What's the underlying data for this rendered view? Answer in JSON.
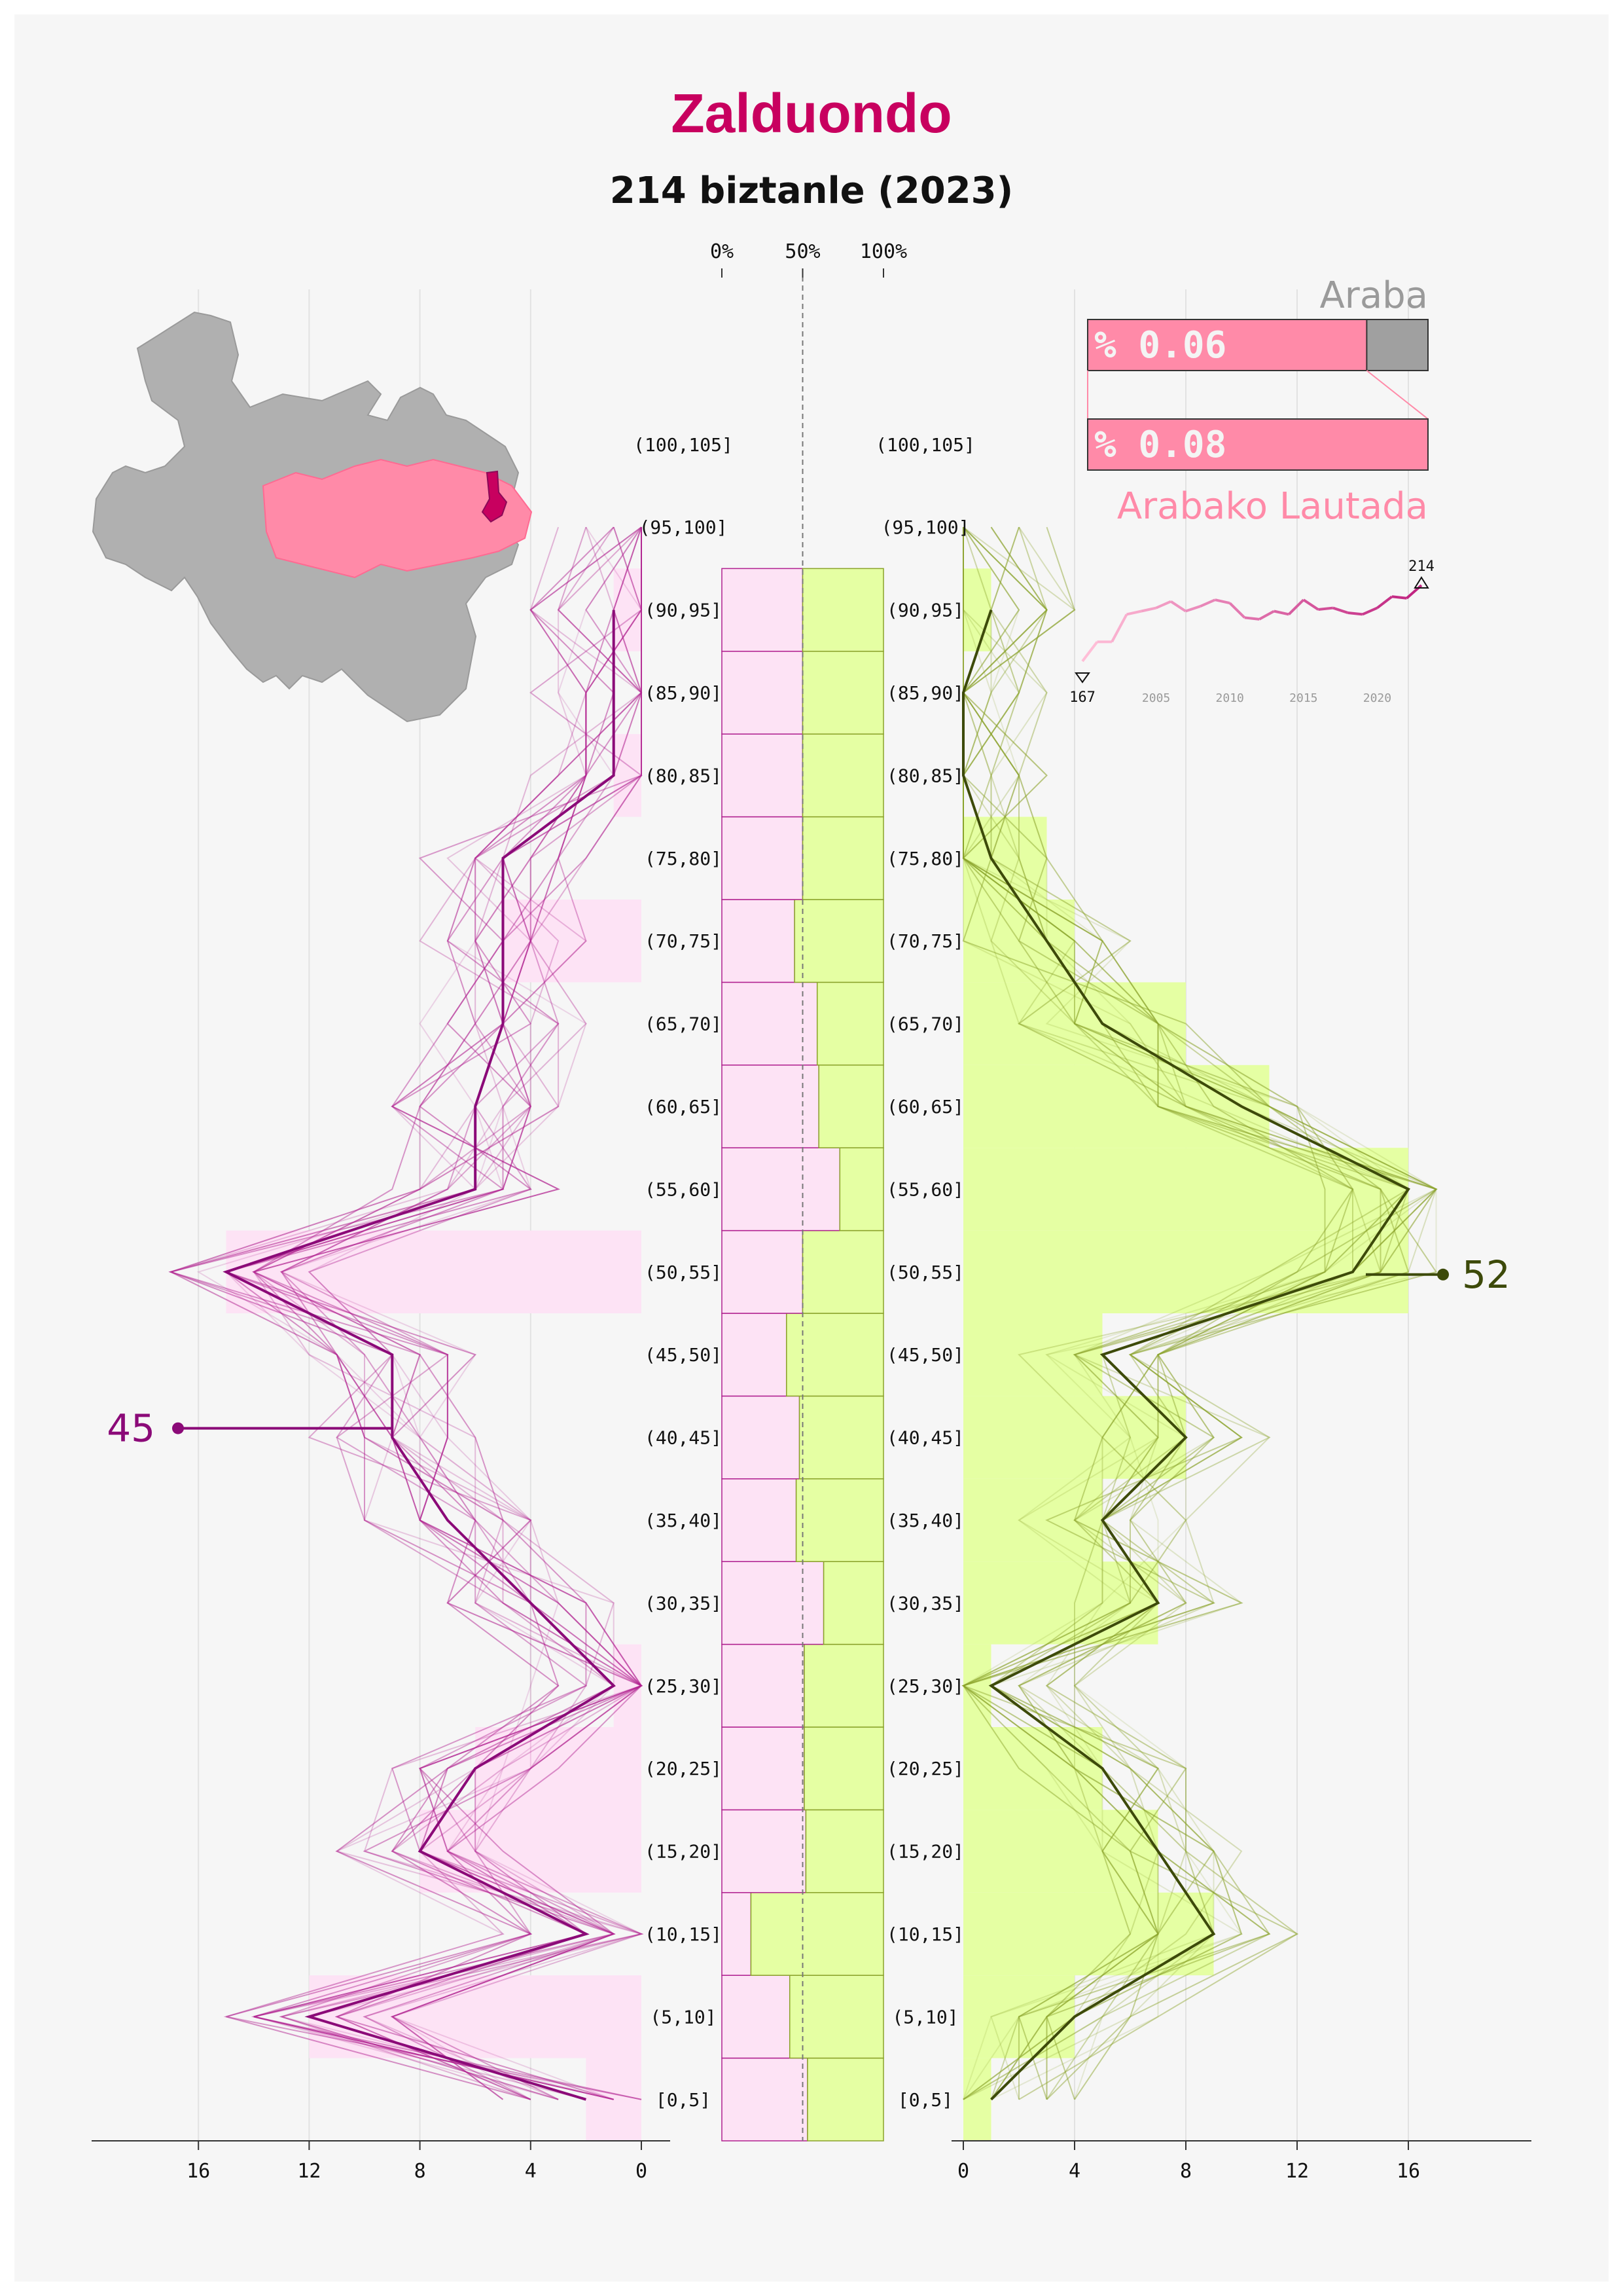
{
  "header": {
    "title": "Zalduondo",
    "subtitle": "214 biztanle (2023)"
  },
  "colors": {
    "title": "#c8005f",
    "female_dark": "#8b0a78",
    "female_fill": "#fde3f5",
    "male_dark": "#3d4a0a",
    "male_fill": "#e5ffa3",
    "map_grey": "#b0b0b0",
    "map_highlight": "#ff8aa8",
    "map_town": "#c8005f",
    "share_bar": "#ff8aa8",
    "share_rest": "#a0a0a0"
  },
  "share_panel": {
    "province_label": "Araba",
    "province_value": "% 0.06",
    "province_share": 0.06,
    "region_label": "Arabako Lautada",
    "region_value": "% 0.08",
    "region_share": 0.08
  },
  "sparkline": {
    "years": [
      2000,
      2001,
      2002,
      2003,
      2004,
      2005,
      2006,
      2007,
      2008,
      2009,
      2010,
      2011,
      2012,
      2013,
      2014,
      2015,
      2016,
      2017,
      2018,
      2019,
      2020,
      2021,
      2022,
      2023
    ],
    "values": [
      167,
      179,
      179,
      196,
      198,
      200,
      204,
      198,
      201,
      205,
      203,
      194,
      193,
      198,
      196,
      205,
      199,
      200,
      197,
      196,
      200,
      207,
      206,
      214
    ],
    "tick_labels": [
      "2005",
      "2010",
      "2015",
      "2020"
    ],
    "min_label": "167",
    "max_label": "214"
  },
  "chart_data": {
    "type": "bar",
    "age_groups": [
      "[0,5]",
      "(5,10]",
      "(10,15]",
      "(15,20]",
      "(20,25]",
      "(25,30]",
      "(30,35]",
      "(35,40]",
      "(40,45]",
      "(45,50]",
      "(50,55]",
      "(55,60]",
      "(60,65]",
      "(65,70]",
      "(70,75]",
      "(75,80]",
      "(80,85]",
      "(85,90]",
      "(90,95]",
      "(95,100]",
      "(100,105]"
    ],
    "female": [
      2,
      12,
      0,
      8,
      6,
      1,
      0,
      0,
      0,
      0,
      15,
      0,
      0,
      0,
      5,
      0,
      1,
      0,
      1,
      0,
      0
    ],
    "male": [
      1,
      4,
      9,
      7,
      5,
      1,
      7,
      5,
      8,
      5,
      16,
      16,
      11,
      8,
      4,
      3,
      0,
      0,
      1,
      0,
      0
    ],
    "female_line": [
      2,
      12,
      2,
      8,
      6,
      1,
      4,
      7,
      9,
      9,
      15,
      6,
      6,
      5,
      5,
      5,
      1,
      1,
      1,
      0,
      0
    ],
    "male_line": [
      1,
      4,
      9,
      7,
      5,
      1,
      7,
      5,
      8,
      5,
      14,
      16,
      10,
      5,
      3,
      1,
      0,
      0,
      1,
      0,
      0
    ],
    "female_share_pct": [
      53,
      42,
      18,
      52,
      51,
      51,
      63,
      46,
      48,
      40,
      50,
      73,
      60,
      59,
      45,
      50,
      50,
      50,
      50,
      50,
      50
    ],
    "female_highlight": {
      "label": "45",
      "age_group": "(40,45]"
    },
    "male_highlight": {
      "label": "52",
      "age_group": "(50,55]"
    },
    "left_axis_ticks": [
      "16",
      "12",
      "8",
      "4",
      "0"
    ],
    "right_axis_ticks": [
      "0",
      "4",
      "8",
      "12",
      "16"
    ],
    "share_axis_ticks": [
      "0%",
      "50%",
      "100%"
    ],
    "xlim": [
      0,
      18
    ]
  }
}
